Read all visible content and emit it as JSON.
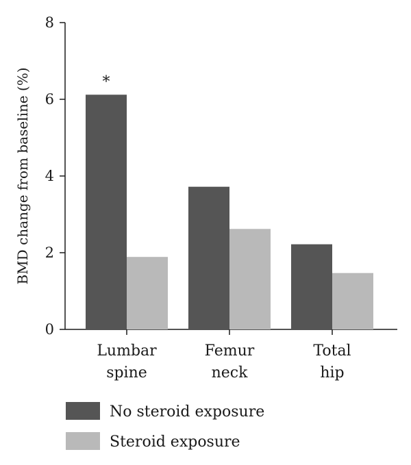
{
  "chart_data": {
    "type": "bar",
    "categories": [
      [
        "Lumbar",
        "spine"
      ],
      [
        "Femur",
        "neck"
      ],
      [
        "Total",
        "hip"
      ]
    ],
    "series": [
      {
        "name": "No steroid exposure",
        "values": [
          6.12,
          3.72,
          2.22
        ],
        "color": "#555555"
      },
      {
        "name": "Steroid exposure",
        "values": [
          1.89,
          2.62,
          1.47
        ],
        "color": "#b9b9b9"
      }
    ],
    "ylabel": "BMD change from baseline (%)",
    "ylim": [
      0,
      8
    ],
    "yticks": [
      0,
      2,
      4,
      6,
      8
    ],
    "annotations": [
      {
        "text": "*",
        "category_index": 0,
        "series_index": 0
      }
    ],
    "legend": "bottom-left",
    "grid": false
  }
}
